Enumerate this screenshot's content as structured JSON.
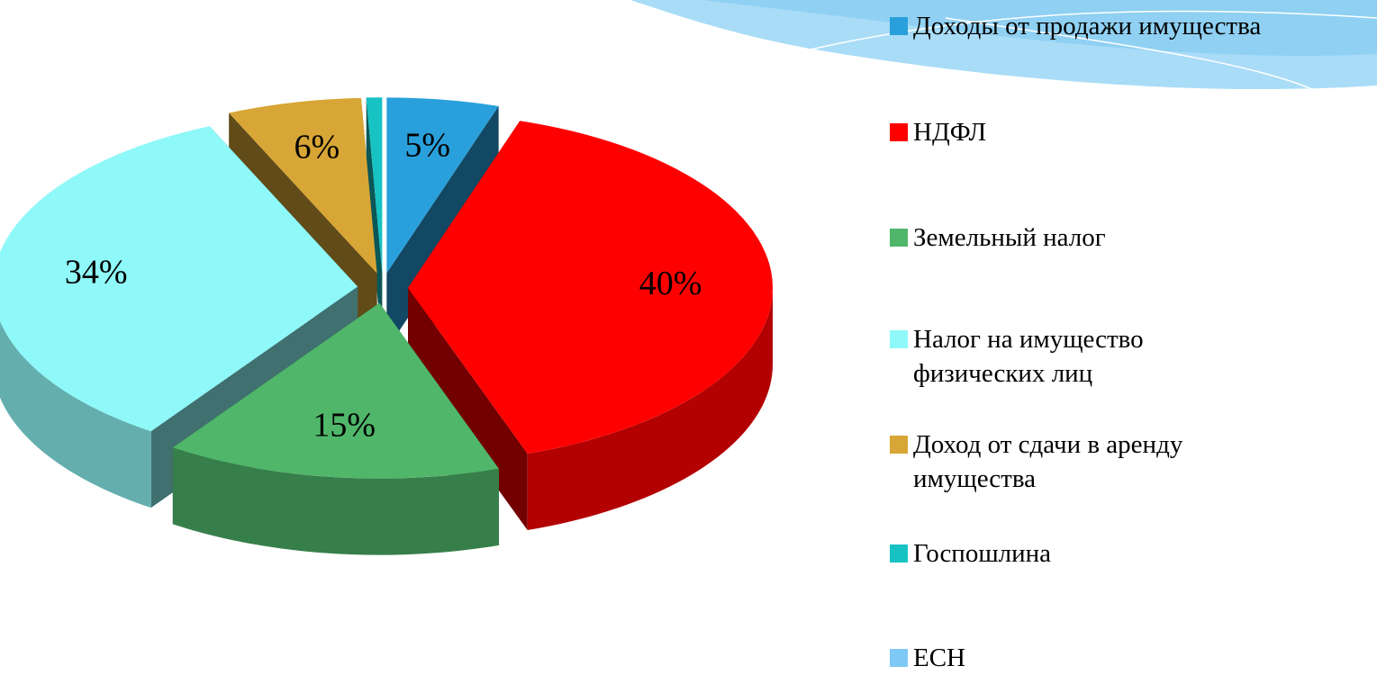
{
  "chart_data": {
    "type": "pie",
    "categories": [
      "Доходы от продажи имущества",
      "НДФЛ",
      "Земельный налог",
      "Налог на имущество физических лиц",
      "Доход от сдачи в аренду имущества",
      "Госпошлина",
      "ЕСН"
    ],
    "values": [
      5,
      40,
      15,
      34,
      6,
      0.7,
      0
    ],
    "value_labels": [
      "5%",
      "40%",
      "15%",
      "34%",
      "6%",
      null,
      null
    ],
    "colors": [
      "#29a0dc",
      "#ff0000",
      "#4fb66a",
      "#8ff8f8",
      "#d8a636",
      "#17c2c2",
      "#7ec8f5"
    ],
    "legend": "right"
  }
}
